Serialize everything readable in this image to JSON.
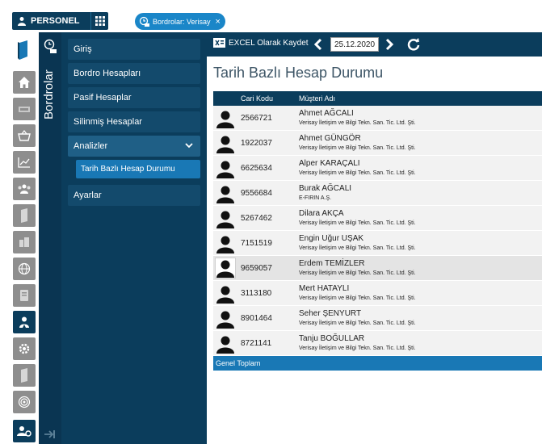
{
  "topbar": {
    "app_button_label": "PERSONEL",
    "tab_label": "Bordrolar: Verisay",
    "tab_close": "×"
  },
  "sidebar": {
    "vertical_title": "Bordrolar",
    "items": [
      {
        "label": "Giriş"
      },
      {
        "label": "Bordro Hesapları"
      },
      {
        "label": "Pasif Hesaplar"
      },
      {
        "label": "Silinmiş Hesaplar"
      },
      {
        "label": "Analizler"
      },
      {
        "label": "Ayarlar"
      }
    ],
    "sub_items": [
      {
        "label": "Tarih Bazlı Hesap Durumu"
      }
    ]
  },
  "toolbar": {
    "excel_label": "EXCEL Olarak Kaydet",
    "date_value": "25.12.2020"
  },
  "main": {
    "title": "Tarih Bazlı Hesap Durumu",
    "columns": {
      "code": "Cari Kodu",
      "customer": "Müşteri Adı"
    },
    "rows": [
      {
        "code": "2566721",
        "name": "Ahmet AĞCALI",
        "company": "Verisay İletişim ve Bilgi Tekn. San. Tic. Ltd. Şti."
      },
      {
        "code": "1922037",
        "name": "Ahmet GÜNGÖR",
        "company": "Verisay İletişim ve Bilgi Tekn. San. Tic. Ltd. Şti."
      },
      {
        "code": "6625634",
        "name": "Alper KARAÇALI",
        "company": "Verisay İletişim ve Bilgi Tekn. San. Tic. Ltd. Şti."
      },
      {
        "code": "9556684",
        "name": "Burak AĞCALI",
        "company": "E-FIRIN A.Ş."
      },
      {
        "code": "5267462",
        "name": "Dilara AKÇA",
        "company": "Verisay İletişim ve Bilgi Tekn. San. Tic. Ltd. Şti."
      },
      {
        "code": "7151519",
        "name": "Engin Uğur UŞAK",
        "company": "Verisay İletişim ve Bilgi Tekn. San. Tic. Ltd. Şti."
      },
      {
        "code": "9659057",
        "name": "Erdem TEMİZLER",
        "company": "Verisay İletişim ve Bilgi Tekn. San. Tic. Ltd. Şti."
      },
      {
        "code": "3113180",
        "name": "Mert HATAYLI",
        "company": "Verisay İletişim ve Bilgi Tekn. San. Tic. Ltd. Şti."
      },
      {
        "code": "8901464",
        "name": "Seher ŞENYURT",
        "company": "Verisay İletişim ve Bilgi Tekn. San. Tic. Ltd. Şti."
      },
      {
        "code": "8721141",
        "name": "Tanju BOĞULLAR",
        "company": "Verisay İletişim ve Bilgi Tekn. San. Tic. Ltd. Şti."
      }
    ],
    "footer_label": "Genel Toplam"
  },
  "icons": {
    "rail": [
      "book-icon",
      "home-icon",
      "money-icon",
      "basket-icon",
      "chart-icon",
      "team-icon",
      "folder-icon",
      "building-icon",
      "globe-icon",
      "contacts-icon",
      "person-icon",
      "settings-cog-icon",
      "folder-icon",
      "target-icon",
      "user-settings-icon"
    ]
  },
  "colors": {
    "navy": "#0b3d5c",
    "blue_accent": "#1978b5",
    "tab_blue": "#1a86c8",
    "rail_gray": "#8e8e8e"
  }
}
